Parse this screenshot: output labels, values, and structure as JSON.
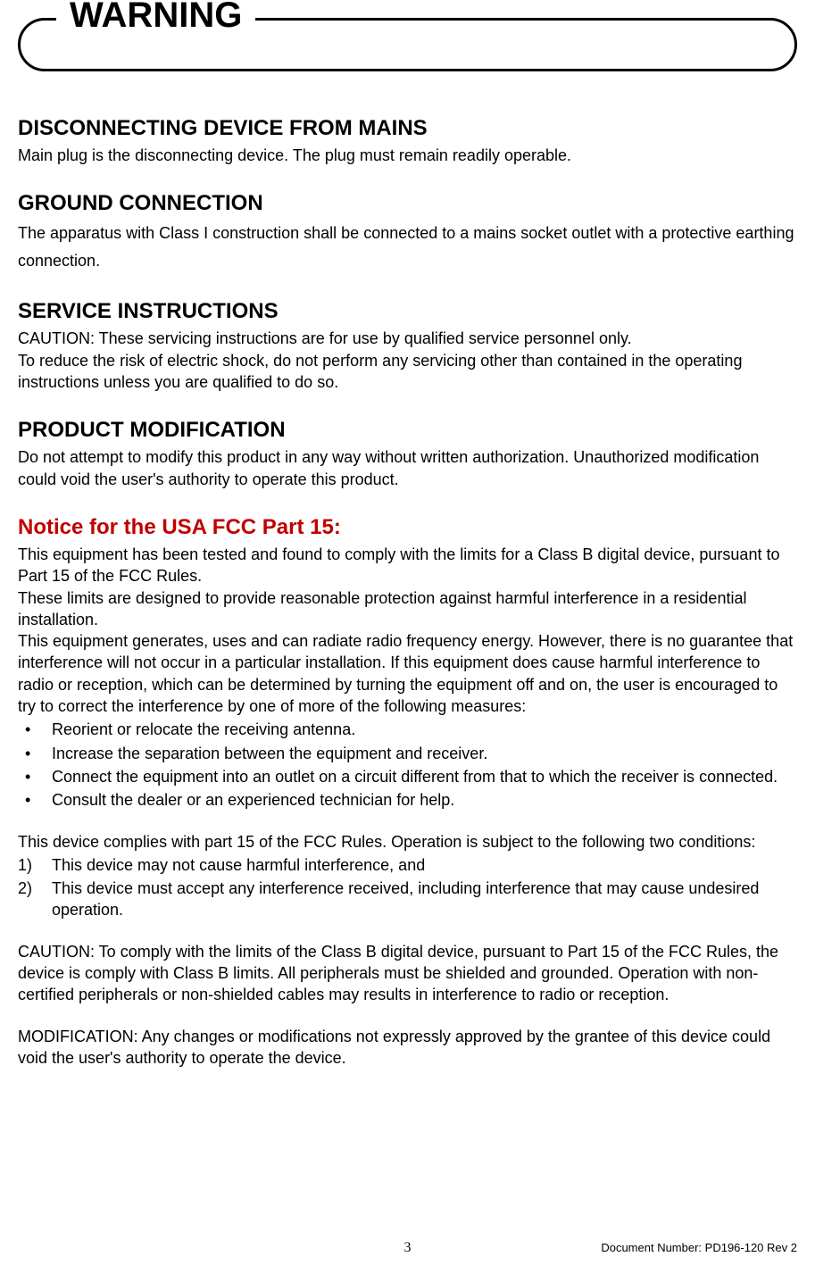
{
  "warning_label": "WARNING",
  "sections": {
    "disconnect": {
      "title": "DISCONNECTING DEVICE FROM MAINS",
      "body": "Main plug is the disconnecting device. The plug must remain readily operable."
    },
    "ground": {
      "title": "GROUND CONNECTION",
      "body": "The apparatus with Class I construction shall be connected to a mains socket outlet with a protective earthing connection."
    },
    "service": {
      "title": "SERVICE INSTRUCTIONS",
      "body1": "CAUTION: These servicing instructions are for use by qualified service personnel only.",
      "body2": "To reduce the risk of electric shock, do not perform any servicing other than contained in the operating instructions unless you are qualified to do so."
    },
    "modification": {
      "title": "PRODUCT MODIFICATION",
      "body": "Do not attempt to modify this product in any way without written authorization. Unauthorized modification could void the user's authority to operate this product."
    },
    "fcc": {
      "title": "Notice for the USA FCC Part 15:",
      "p1": "This equipment has been tested and found to comply with the limits for a Class B digital device, pursuant to Part 15 of the FCC Rules.",
      "p2": "These limits are designed to provide reasonable protection against harmful interference in a residential installation.",
      "p3": "This equipment generates, uses and can radiate radio frequency energy. However, there is no guarantee that interference will not occur in a particular installation. If this equipment does cause harmful interference to radio or reception, which can be determined by turning the equipment off and on, the user is encouraged to try to correct the interference by one of more of the following measures:",
      "bullets": [
        "Reorient or relocate the receiving antenna.",
        "Increase the separation between the equipment and receiver.",
        "Connect the equipment into an outlet on a circuit different from that to which the receiver is connected.",
        "Consult the dealer or an experienced technician for help."
      ],
      "p4": "This device complies with part 15 of the FCC Rules. Operation is subject to the following two conditions:",
      "numlist": [
        "This device may not cause harmful interference, and",
        "This device must accept any interference received, including interference that may cause undesired operation."
      ],
      "p5": "CAUTION: To comply with the limits of the Class B digital device, pursuant to Part 15 of the FCC Rules, the device is comply with Class B limits. All peripherals must be shielded and grounded. Operation with non-certified peripherals or non-shielded cables may results in interference to radio or reception.",
      "p6": "MODIFICATION: Any changes or modifications not expressly approved by the grantee of this device could void the user's authority to operate the device."
    }
  },
  "footer": {
    "page_number": "3",
    "doc_number": "Document Number: PD196-120 Rev 2"
  },
  "colors": {
    "text": "#000000",
    "background": "#ffffff",
    "red_title": "#c00000",
    "border": "#000000"
  },
  "typography": {
    "body_fontsize": 18,
    "title_fontsize": 24,
    "warning_fontsize": 40,
    "footer_fontsize": 13,
    "font_family": "Arial"
  }
}
